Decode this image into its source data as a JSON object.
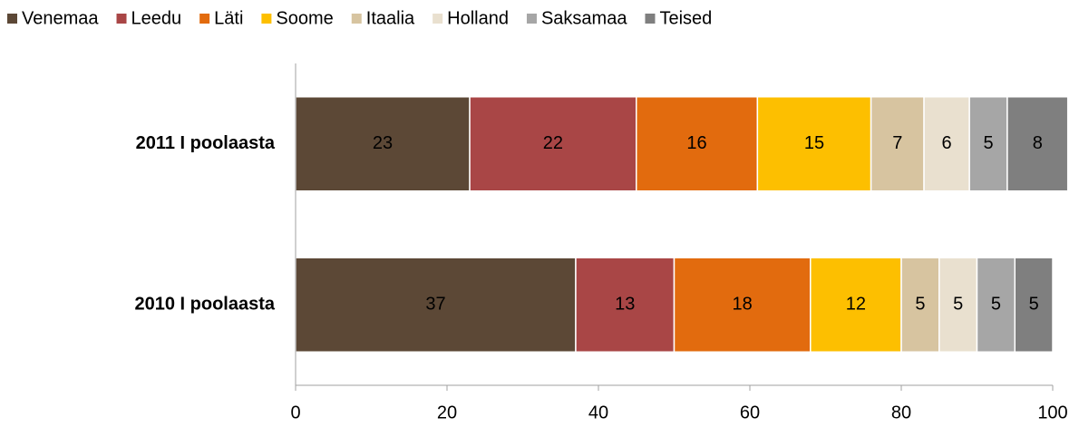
{
  "chart_data": {
    "type": "bar",
    "orientation": "horizontal",
    "stacked": true,
    "legend": "top",
    "categories": [
      "2011 I poolaasta",
      "2010 I poolaasta"
    ],
    "series": [
      {
        "name": "Venemaa",
        "color": "#5c4836",
        "values": [
          23,
          37
        ]
      },
      {
        "name": "Leedu",
        "color": "#a94646",
        "values": [
          22,
          13
        ]
      },
      {
        "name": "Läti",
        "color": "#e26b0e",
        "values": [
          16,
          18
        ]
      },
      {
        "name": "Soome",
        "color": "#fdbf00",
        "values": [
          15,
          12
        ]
      },
      {
        "name": "Itaalia",
        "color": "#d7c4a0",
        "values": [
          7,
          5
        ]
      },
      {
        "name": "Holland",
        "color": "#e9e0cf",
        "values": [
          6,
          5
        ]
      },
      {
        "name": "Saksamaa",
        "color": "#a6a6a6",
        "values": [
          5,
          5
        ]
      },
      {
        "name": "Teised",
        "color": "#7f7f7f",
        "values": [
          8,
          5
        ]
      }
    ],
    "xlim": [
      0,
      100
    ],
    "xticks": [
      0,
      20,
      40,
      60,
      80,
      100
    ],
    "grid": false
  }
}
